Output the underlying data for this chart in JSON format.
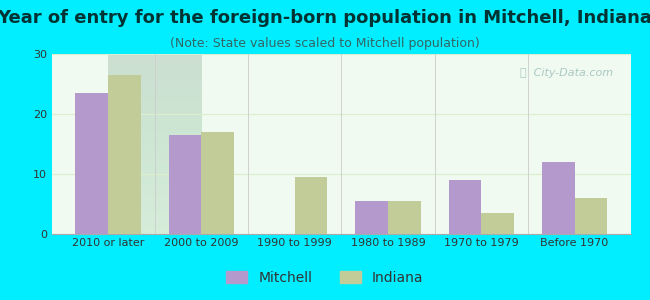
{
  "title": "Year of entry for the foreign-born population in Mitchell, Indiana",
  "subtitle": "(Note: State values scaled to Mitchell population)",
  "categories": [
    "2010 or later",
    "2000 to 2009",
    "1990 to 1999",
    "1980 to 1989",
    "1970 to 1979",
    "Before 1970"
  ],
  "mitchell_values": [
    23.5,
    16.5,
    0,
    5.5,
    9.0,
    12.0
  ],
  "indiana_values": [
    26.5,
    17.0,
    9.5,
    5.5,
    3.5,
    6.0
  ],
  "mitchell_color": "#b399cc",
  "indiana_color": "#c2cc99",
  "background_outer": "#00eeff",
  "ylim": [
    0,
    30
  ],
  "yticks": [
    0,
    10,
    20,
    30
  ],
  "bar_width": 0.35,
  "title_fontsize": 13,
  "subtitle_fontsize": 9,
  "legend_fontsize": 10,
  "tick_fontsize": 8,
  "watermark_text": "ⓘ  City-Data.com"
}
